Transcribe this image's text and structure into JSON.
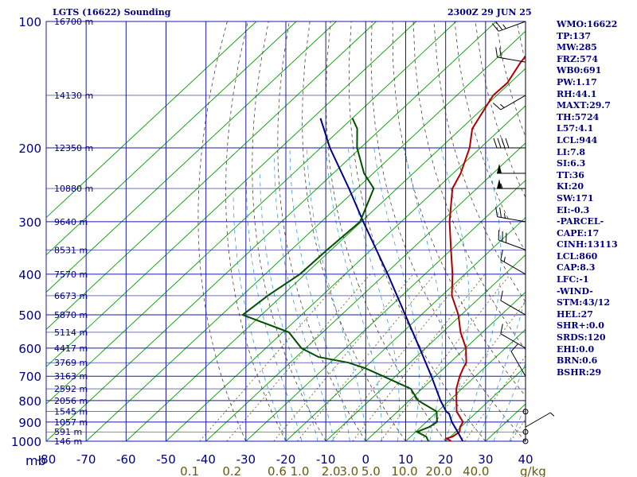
{
  "header": {
    "station": "LGTS (16622) Sounding",
    "time": "2300Z 29 JUN 25"
  },
  "indices": [
    "WMO:16622",
    "TP:137",
    "MW:285",
    "FRZ:574",
    "WB0:691",
    "PW:1.17",
    "RH:44.1",
    "MAXT:29.7",
    "TH:5724",
    "L57:4.1",
    "LCL:944",
    "LI:7.8",
    "SI:6.3",
    "TT:36",
    "KI:20",
    "SW:171",
    "EI:-0.3",
    "-PARCEL-",
    "CAPE:17",
    "CINH:13113",
    "LCL:860",
    "CAP:8.3",
    "LFC:-1",
    "-WIND-",
    "STM:43/12",
    "HEL:27",
    "SHR+:0.0",
    "SRDS:120",
    "EHI:0.0",
    "BRN:0.6",
    "BSHR:29"
  ],
  "chart_data": {
    "type": "line",
    "title": "LGTS (16622) Sounding",
    "xlabel": "",
    "ylabel": "mb",
    "xlim": [
      -80,
      40
    ],
    "ylim": [
      1000,
      100
    ],
    "x_ticks": [
      -80,
      -70,
      -60,
      -50,
      -40,
      -30,
      -20,
      -10,
      0,
      10,
      20,
      30,
      40
    ],
    "pressure_ticks": [
      100,
      200,
      300,
      400,
      500,
      600,
      700,
      800,
      900,
      1000
    ],
    "height_labels": [
      {
        "p": 100,
        "text": "16700 m"
      },
      {
        "p": 150,
        "text": "14130 m"
      },
      {
        "p": 200,
        "text": "12350 m"
      },
      {
        "p": 250,
        "text": "10880 m"
      },
      {
        "p": 300,
        "text": "9640 m"
      },
      {
        "p": 350,
        "text": "8531 m"
      },
      {
        "p": 400,
        "text": "7570 m"
      },
      {
        "p": 450,
        "text": "6673 m"
      },
      {
        "p": 500,
        "text": "5870 m"
      },
      {
        "p": 550,
        "text": "5114 m"
      },
      {
        "p": 600,
        "text": "4417 m"
      },
      {
        "p": 650,
        "text": "3769 m"
      },
      {
        "p": 700,
        "text": "3163 m"
      },
      {
        "p": 750,
        "text": "2592 m"
      },
      {
        "p": 800,
        "text": "2056 m"
      },
      {
        "p": 850,
        "text": "1545 m"
      },
      {
        "p": 900,
        "text": "1057 m"
      },
      {
        "p": 950,
        "text": "591 m"
      },
      {
        "p": 1000,
        "text": "146 m"
      }
    ],
    "mixing_ratio_labels": [
      {
        "x": -44.1,
        "text": "0.1"
      },
      {
        "x": -33.5,
        "text": "0.2"
      },
      {
        "x": -22.2,
        "text": "0.6"
      },
      {
        "x": -16.5,
        "text": "1.0"
      },
      {
        "x": -8.7,
        "text": "2.0"
      },
      {
        "x": -4.2,
        "text": "3.0"
      },
      {
        "x": 1.3,
        "text": "5.0"
      },
      {
        "x": 9.7,
        "text": "10.0"
      },
      {
        "x": 18.3,
        "text": "20.0"
      },
      {
        "x": 27.6,
        "text": "40.0"
      }
    ],
    "mixing_ratio_unit": "g/kg",
    "series": [
      {
        "color": "#b00000",
        "points": [
          [
            1000,
            21.4
          ],
          [
            985,
            19.5
          ],
          [
            975,
            20.5
          ],
          [
            950,
            21.0
          ],
          [
            925,
            19.8
          ],
          [
            900,
            19.2
          ],
          [
            850,
            14.8
          ],
          [
            800,
            11.8
          ],
          [
            750,
            8.6
          ],
          [
            700,
            6.1
          ],
          [
            670,
            4.8
          ],
          [
            650,
            4.1
          ],
          [
            600,
            0.1
          ],
          [
            550,
            -5.5
          ],
          [
            500,
            -10.7
          ],
          [
            450,
            -17.5
          ],
          [
            400,
            -23.1
          ],
          [
            350,
            -30.0
          ],
          [
            300,
            -37.9
          ],
          [
            250,
            -46.1
          ],
          [
            230,
            -48.1
          ],
          [
            200,
            -52.7
          ],
          [
            180,
            -57.2
          ],
          [
            150,
            -60.9
          ],
          [
            140,
            -60.7
          ],
          [
            125,
            -62.9
          ],
          [
            110,
            -64.3
          ],
          [
            100,
            -65.0
          ]
        ]
      },
      {
        "color": "#00008b",
        "points": [
          [
            1000,
            24.3
          ],
          [
            950,
            20.5
          ],
          [
            900,
            16.4
          ],
          [
            860,
            13.5
          ],
          [
            850,
            12.2
          ],
          [
            800,
            7.8
          ],
          [
            700,
            -1.0
          ],
          [
            600,
            -11.5
          ],
          [
            500,
            -24.0
          ],
          [
            400,
            -39.3
          ],
          [
            300,
            -59.5
          ],
          [
            250,
            -72.0
          ],
          [
            200,
            -87.7
          ],
          [
            170,
            -98.0
          ]
        ]
      },
      {
        "color": "#005000",
        "points": [
          [
            1000,
            15.7
          ],
          [
            975,
            13.9
          ],
          [
            950,
            10.3
          ],
          [
            925,
            12.1
          ],
          [
            900,
            12.7
          ],
          [
            850,
            9.8
          ],
          [
            800,
            2.2
          ],
          [
            750,
            -2.8
          ],
          [
            700,
            -13.1
          ],
          [
            670,
            -19.7
          ],
          [
            650,
            -25.4
          ],
          [
            630,
            -34.4
          ],
          [
            600,
            -41.1
          ],
          [
            550,
            -48.5
          ],
          [
            500,
            -64.7
          ],
          [
            450,
            -63.6
          ],
          [
            400,
            -61.3
          ],
          [
            350,
            -61.0
          ],
          [
            300,
            -60.3
          ],
          [
            250,
            -65.8
          ],
          [
            230,
            -72.3
          ],
          [
            200,
            -80.9
          ],
          [
            180,
            -86.0
          ],
          [
            170,
            -90.0
          ]
        ]
      }
    ],
    "wind_barbs": [
      {
        "p": 1000,
        "dir": 0,
        "speed": 0
      },
      {
        "p": 950,
        "dir": 0,
        "speed": 0
      },
      {
        "p": 925,
        "dir": 60,
        "speed": 5
      },
      {
        "p": 850,
        "dir": 0,
        "speed": 0
      },
      {
        "p": 700,
        "dir": 330,
        "speed": 10
      },
      {
        "p": 600,
        "dir": 300,
        "speed": 10
      },
      {
        "p": 500,
        "dir": 300,
        "speed": 10
      },
      {
        "p": 400,
        "dir": 300,
        "speed": 15
      },
      {
        "p": 350,
        "dir": 290,
        "speed": 30
      },
      {
        "p": 300,
        "dir": 280,
        "speed": 25
      },
      {
        "p": 250,
        "dir": 270,
        "speed": 55
      },
      {
        "p": 230,
        "dir": 270,
        "speed": 50
      },
      {
        "p": 200,
        "dir": 270,
        "speed": 40
      },
      {
        "p": 150,
        "dir": 240,
        "speed": 15
      },
      {
        "p": 125,
        "dir": 280,
        "speed": 20
      },
      {
        "p": 100,
        "dir": 250,
        "speed": 25
      }
    ]
  }
}
